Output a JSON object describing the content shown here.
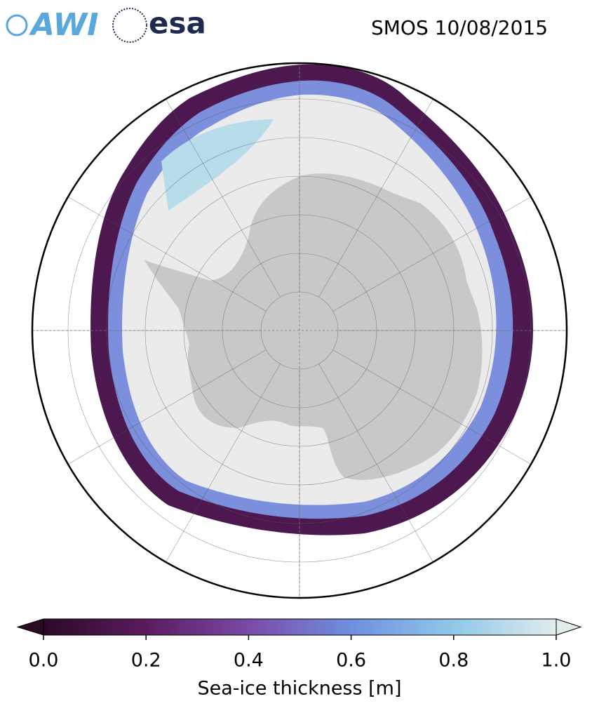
{
  "header": {
    "logos": [
      "AWI",
      "esa"
    ],
    "title": "SMOS 10/08/2015"
  },
  "colorbar": {
    "label": "Sea-ice thickness [m]",
    "lim": [
      0,
      1
    ],
    "colors": [
      "#2b0a26",
      "#5a1b5e",
      "#7a4aa8",
      "#6f8fe0",
      "#8fc8e8",
      "#e2ecec"
    ],
    "ticks": [
      {
        "value": 0,
        "label": "0.0"
      },
      {
        "value": 0.2,
        "label": "0.2"
      },
      {
        "value": 0.4,
        "label": "0.4"
      },
      {
        "value": 0.6,
        "label": "0.6"
      },
      {
        "value": 0.8,
        "label": "0.8"
      },
      {
        "value": 1,
        "label": "1.0"
      }
    ]
  }
}
